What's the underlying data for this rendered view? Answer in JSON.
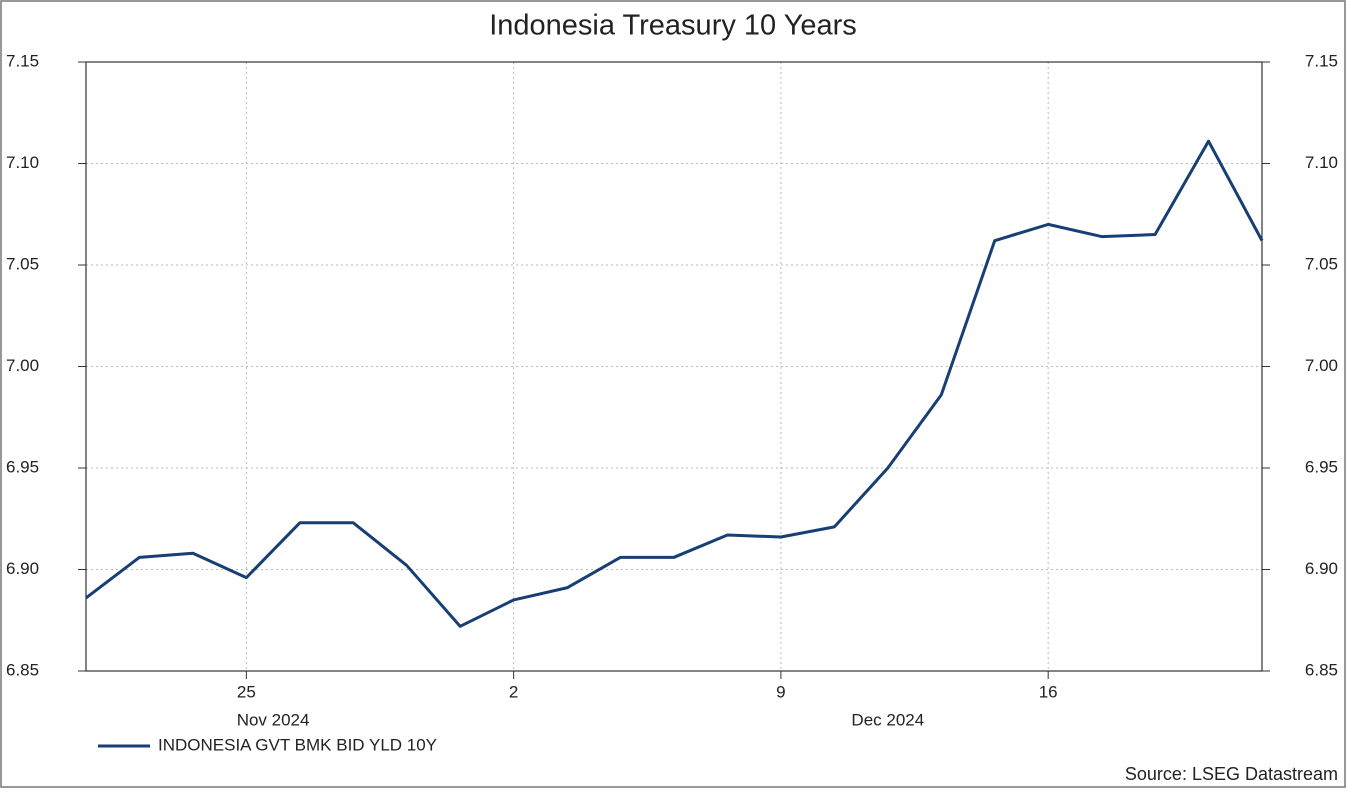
{
  "chart_data": {
    "type": "line",
    "title": "Indonesia Treasury 10 Years",
    "x": [
      "2024-11-20",
      "2024-11-21",
      "2024-11-22",
      "2024-11-25",
      "2024-11-26",
      "2024-11-27",
      "2024-11-28",
      "2024-11-29",
      "2024-12-02",
      "2024-12-03",
      "2024-12-04",
      "2024-12-05",
      "2024-12-06",
      "2024-12-09",
      "2024-12-10",
      "2024-12-11",
      "2024-12-12",
      "2024-12-13",
      "2024-12-16",
      "2024-12-17",
      "2024-12-18",
      "2024-12-19",
      "2024-12-20"
    ],
    "series": [
      {
        "name": "INDONESIA GVT BMK BID YLD 10Y",
        "color": "#173f73",
        "values": [
          6.886,
          6.906,
          6.908,
          6.896,
          6.923,
          6.923,
          6.902,
          6.872,
          6.885,
          6.891,
          6.906,
          6.906,
          6.917,
          6.916,
          6.921,
          6.95,
          6.986,
          7.062,
          7.07,
          7.064,
          7.065,
          7.111,
          7.062
        ]
      }
    ],
    "xlim": [
      "2024-11-20",
      "2024-12-20"
    ],
    "xticks": [
      {
        "value": "2024-11-25",
        "label": "25"
      },
      {
        "value": "2024-12-02",
        "label": "2"
      },
      {
        "value": "2024-12-09",
        "label": "9"
      },
      {
        "value": "2024-12-16",
        "label": "16"
      }
    ],
    "x_period_labels": [
      {
        "value": "2024-11",
        "label": "Nov 2024"
      },
      {
        "value": "2024-12",
        "label": "Dec 2024"
      }
    ],
    "ylim": [
      6.85,
      7.15
    ],
    "yticks": [
      6.85,
      {
        "value": 6.9,
        "label": "6.90"
      },
      6.95,
      {
        "value": 7.0,
        "label": "7.00"
      },
      7.05,
      {
        "value": 7.1,
        "label": "7.10"
      },
      7.15
    ],
    "grid": true,
    "source": "Source: LSEG Datastream"
  }
}
